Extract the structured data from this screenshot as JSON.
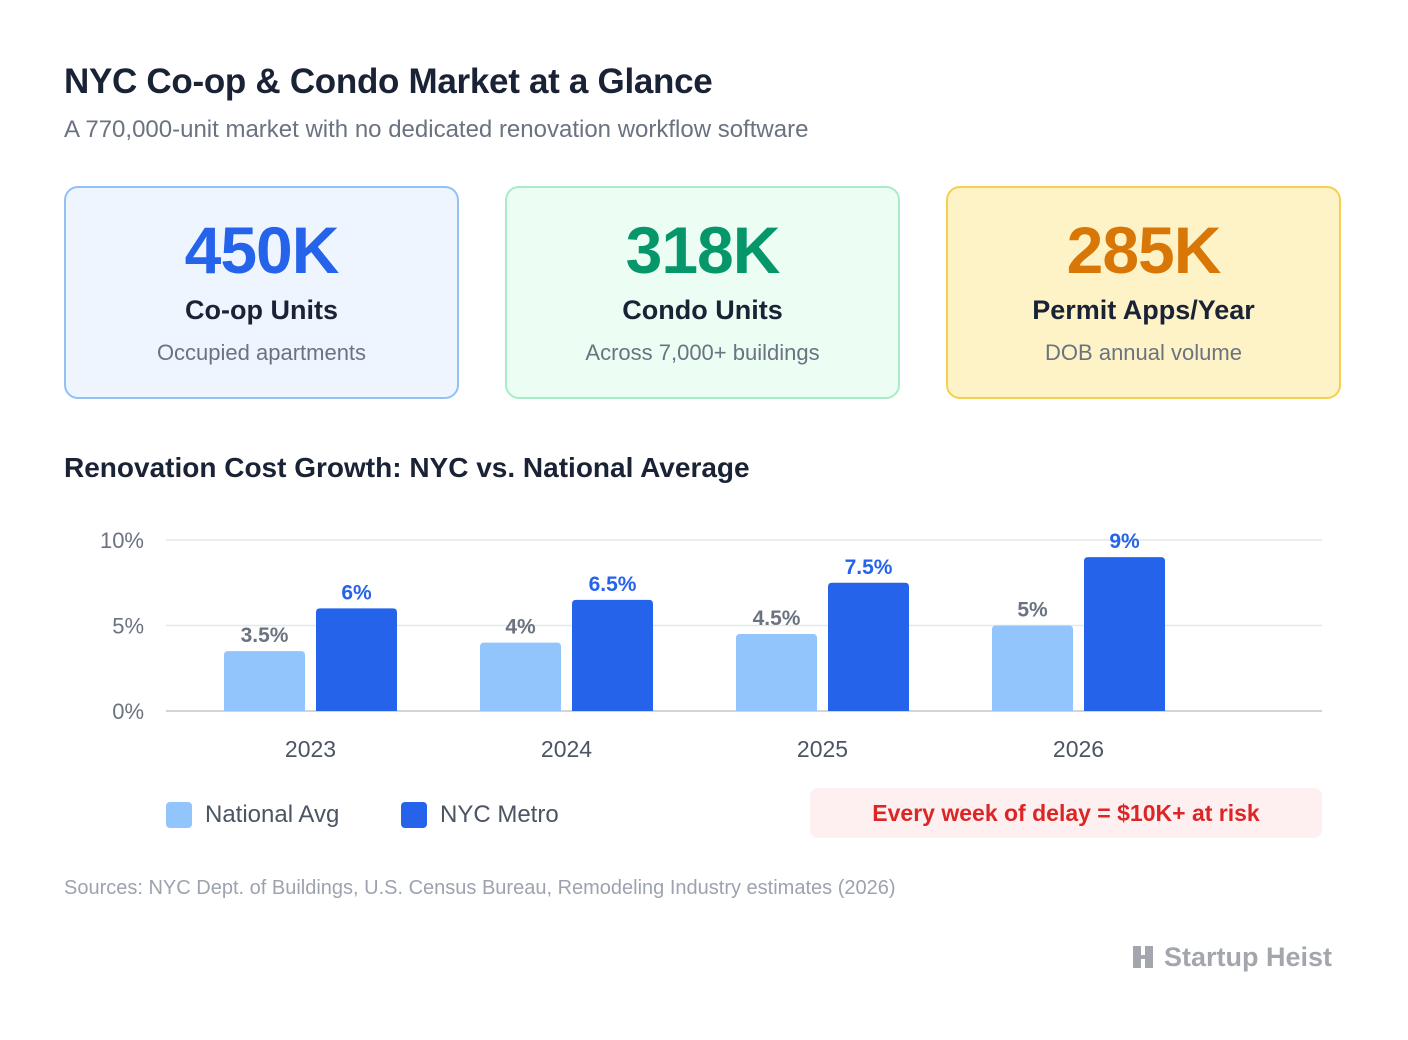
{
  "header": {
    "title": "NYC Co-op & Condo Market at a Glance",
    "subtitle": "A 770,000-unit market with no dedicated renovation workflow software"
  },
  "cards": [
    {
      "value": "450K",
      "label": "Co-op Units",
      "desc": "Occupied apartments",
      "color": "#2563eb"
    },
    {
      "value": "318K",
      "label": "Condo Units",
      "desc": "Across 7,000+ buildings",
      "color": "#059669"
    },
    {
      "value": "285K",
      "label": "Permit Apps/Year",
      "desc": "DOB annual volume",
      "color": "#d97706"
    }
  ],
  "chart_data": {
    "type": "bar",
    "title": "Renovation Cost Growth: NYC vs. National Average",
    "categories": [
      "2023",
      "2024",
      "2025",
      "2026"
    ],
    "series": [
      {
        "name": "National Avg",
        "values": [
          3.5,
          4,
          4.5,
          5
        ],
        "labels": [
          "3.5%",
          "4%",
          "4.5%",
          "5%"
        ],
        "color": "#93c5fd",
        "label_color": "#6b7280"
      },
      {
        "name": "NYC Metro",
        "values": [
          6,
          6.5,
          7.5,
          9
        ],
        "labels": [
          "6%",
          "6.5%",
          "7.5%",
          "9%"
        ],
        "color": "#2563eb",
        "label_color": "#2563eb"
      }
    ],
    "ylim": [
      0,
      10
    ],
    "yticks": [
      0,
      5,
      10
    ],
    "ytick_labels": [
      "0%",
      "5%",
      "10%"
    ],
    "grid": true,
    "legend": "bottom-left"
  },
  "callout": "Every week of delay = $10K+ at risk",
  "sources": "Sources: NYC Dept. of Buildings, U.S. Census Bureau, Remodeling Industry estimates (2026)",
  "brand": {
    "name": "Startup Heist",
    "icon": "building-logo-icon",
    "color": "#a3a7ad"
  }
}
